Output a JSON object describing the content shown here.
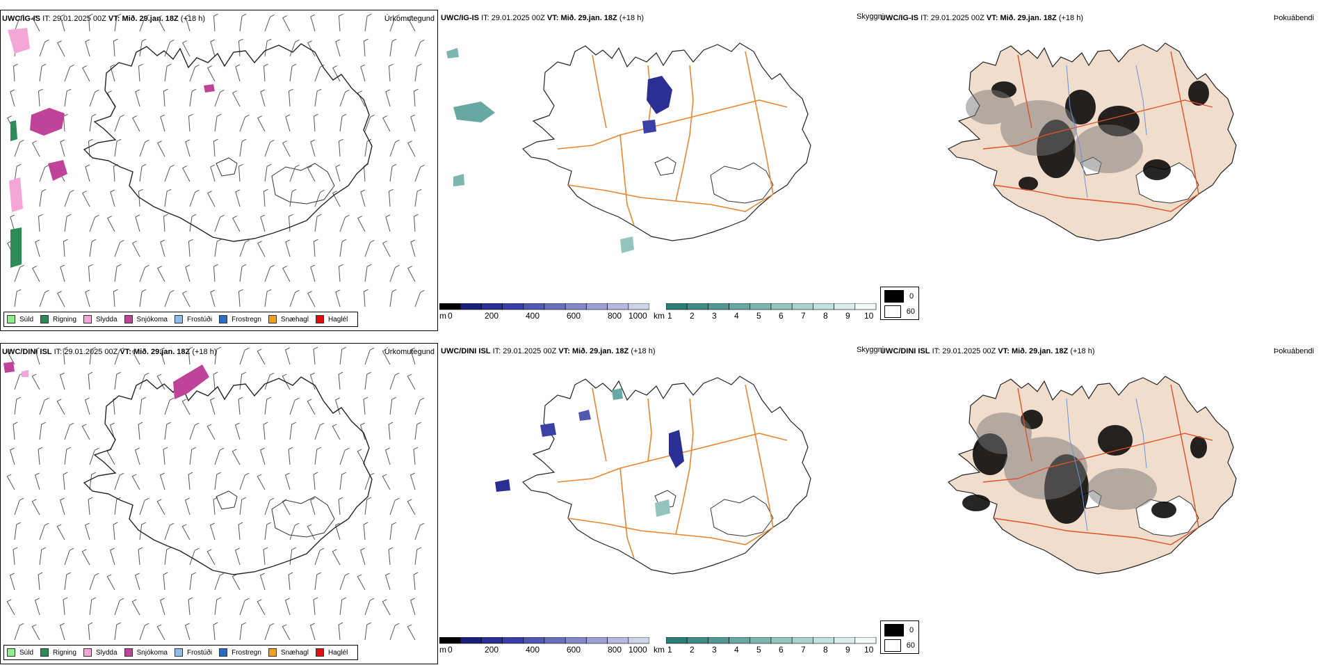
{
  "panels": {
    "top": {
      "precip": {
        "model": "UWC/IG-IS",
        "it_label": "IT:",
        "it_value": "29.01.2025 00Z",
        "vt_label": "VT:",
        "vt_value": "Mið. 29.jan. 18Z",
        "lead": "(+18 h)",
        "title": "Úrkomutegund"
      },
      "vis": {
        "model": "UWC/IG-IS",
        "it_label": "IT:",
        "it_value": "29.01.2025 00Z",
        "vt_label": "VT:",
        "vt_value": "Mið. 29.jan. 18Z",
        "lead": "(+18 h)",
        "title": "Skyggni"
      },
      "cloud": {
        "model": "UWC/IG-IS",
        "it_label": "IT:",
        "it_value": "29.01.2025 00Z",
        "vt_label": "VT:",
        "vt_value": "Mið. 29.jan. 18Z",
        "lead": "(+18 h)",
        "title": "Þokuábendi"
      }
    },
    "bottom": {
      "precip": {
        "model": "UWC/DINI ISL",
        "it_label": "IT:",
        "it_value": "29.01.2025 00Z",
        "vt_label": "VT:",
        "vt_value": "Mið. 29.jan. 18Z",
        "lead": "(+18 h)",
        "title": "Úrkomutegund"
      },
      "vis": {
        "model": "UWC/DINI ISL",
        "it_label": "IT:",
        "it_value": "29.01.2025 00Z",
        "vt_label": "VT:",
        "vt_value": "Mið. 29.jan. 18Z",
        "lead": "(+18 h)",
        "title": "Skyggni"
      },
      "cloud": {
        "model": "UWC/DINI ISL",
        "it_label": "IT:",
        "it_value": "29.01.2025 00Z",
        "vt_label": "VT:",
        "vt_value": "Mið. 29.jan. 18Z",
        "lead": "(+18 h)",
        "title": "Þokuábendi"
      }
    }
  },
  "precip_legend": [
    {
      "label": "Súld",
      "color": "#90ee90"
    },
    {
      "label": "Rigning",
      "color": "#2e8b57"
    },
    {
      "label": "Slydda",
      "color": "#f4a6d7"
    },
    {
      "label": "Snjókoma",
      "color": "#c0439a"
    },
    {
      "label": "Frostúði",
      "color": "#8fbce8"
    },
    {
      "label": "Frostregn",
      "color": "#2b6cc4"
    },
    {
      "label": "Snæhagl",
      "color": "#f0a020"
    },
    {
      "label": "Haglél",
      "color": "#e01010"
    }
  ],
  "ceiling_bar": {
    "unit": "m",
    "ticks": [
      "0",
      "200",
      "400",
      "600",
      "800",
      "1000"
    ],
    "colors": [
      "#000000",
      "#1b1f7a",
      "#2a2f94",
      "#3a40a6",
      "#5058b0",
      "#6a70bc",
      "#8388c6",
      "#9ca0d2",
      "#b6b9de",
      "#d0d2ea"
    ]
  },
  "vis_bar": {
    "unit": "km",
    "ticks": [
      "1",
      "2",
      "3",
      "4",
      "5",
      "6",
      "7",
      "8",
      "9",
      "10"
    ],
    "colors": [
      "#2a7d78",
      "#3d8c86",
      "#519a94",
      "#67a8a2",
      "#7db6b0",
      "#94c4be",
      "#abd2cd",
      "#c2e0dc",
      "#d9eeeb",
      "#f0faf9"
    ]
  },
  "shade_legend": [
    {
      "value": "0",
      "color": "#000000"
    },
    {
      "value": "60",
      "color": "#ffffff"
    }
  ],
  "colors": {
    "coast": "#222222",
    "roads": "#e8852e",
    "land_tint": "#f1ddcc",
    "rivers": "#6f8fd8",
    "road_red": "#e0502a"
  }
}
